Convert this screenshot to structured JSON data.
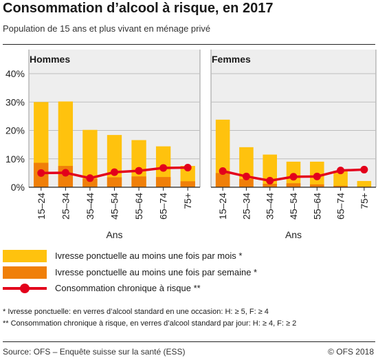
{
  "title": "Consommation d’alcool à risque, en 2017",
  "subtitle": "Population de 15 ans et plus vivant en ménage privé",
  "chart_data": {
    "type": "bar",
    "y_ticks": [
      "0%",
      "10%",
      "20%",
      "30%",
      "40%"
    ],
    "ylim": [
      0,
      40
    ],
    "xlabel": "Ans",
    "grid": true,
    "legend_position": "bottom",
    "categories": [
      "15–24",
      "25–34",
      "35–44",
      "45–54",
      "55–64",
      "65–74",
      "75+"
    ],
    "colors": {
      "monthly": "#ffc20e",
      "weekly": "#f07f09",
      "chronic": "#e3001b"
    },
    "panels": [
      {
        "name": "Hommes",
        "series": [
          {
            "key": "monthly",
            "values": [
              30.0,
              30.2,
              20.2,
              18.4,
              16.6,
              14.4,
              7.5
            ]
          },
          {
            "key": "weekly",
            "values": [
              8.6,
              7.5,
              3.0,
              3.5,
              3.8,
              3.6,
              2.1
            ]
          },
          {
            "key": "chronic",
            "values": [
              5.0,
              5.1,
              3.2,
              5.3,
              5.8,
              6.8,
              6.9
            ]
          }
        ]
      },
      {
        "name": "Femmes",
        "series": [
          {
            "key": "monthly",
            "values": [
              23.8,
              14.1,
              11.5,
              9.0,
              9.0,
              5.8,
              2.2
            ]
          },
          {
            "key": "weekly",
            "values": [
              5.0,
              2.9,
              1.2,
              1.4,
              1.0,
              0.5,
              0.2
            ]
          },
          {
            "key": "chronic",
            "values": [
              5.7,
              3.8,
              2.3,
              3.7,
              3.8,
              5.9,
              6.2
            ]
          }
        ]
      }
    ]
  },
  "legend": {
    "monthly": "Ivresse ponctuelle au moins une fois par mois *",
    "weekly": "Ivresse ponctuelle au moins une fois par semaine *",
    "chronic": "Consommation chronique à risque **"
  },
  "notes": [
    "* Ivresse ponctuelle: en verres d’alcool standard en une occasion: H: ≥ 5, F: ≥ 4",
    "** Consommation chronique à risque, en verres d’alcool standard par jour: H: ≥ 4, F: ≥ 2"
  ],
  "footer": {
    "source": "Source: OFS – Enquête suisse sur la santé (ESS)",
    "copyright": "© OFS 2018"
  }
}
